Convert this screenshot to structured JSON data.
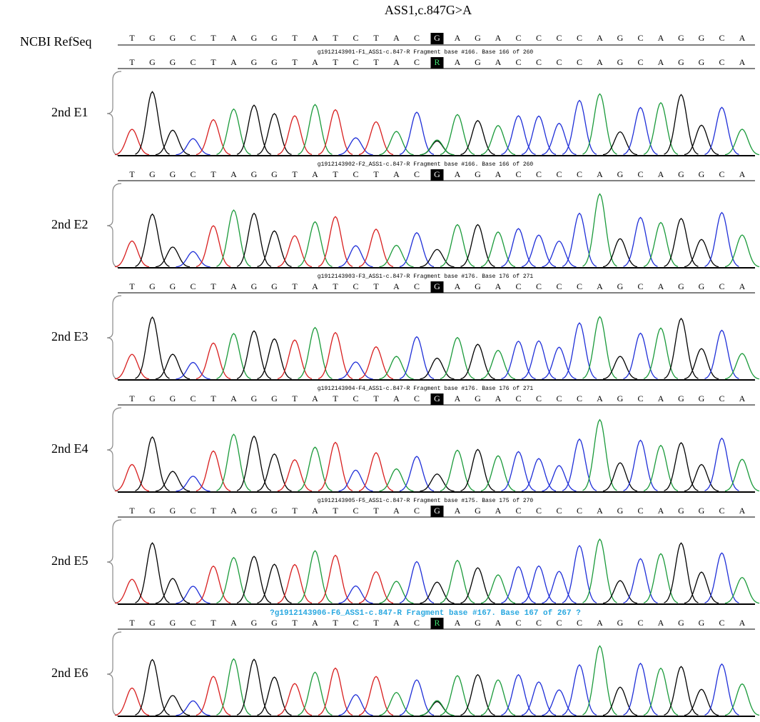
{
  "title": "ASS1,c.847G>A",
  "reference": {
    "label": "NCBI RefSeq",
    "bases": [
      "T",
      "G",
      "G",
      "C",
      "T",
      "A",
      "G",
      "G",
      "T",
      "A",
      "T",
      "C",
      "T",
      "A",
      "C",
      "G",
      "A",
      "G",
      "A",
      "C",
      "C",
      "C",
      "C",
      "A",
      "G",
      "C",
      "A",
      "G",
      "G",
      "C",
      "A"
    ]
  },
  "panels": [
    {
      "label": "2nd E1",
      "header": "g1912143901-F1_ASS1-c.847-R Fragment base #166. Base 166 of 260",
      "bases": [
        "T",
        "G",
        "G",
        "C",
        "T",
        "A",
        "G",
        "G",
        "T",
        "A",
        "T",
        "C",
        "T",
        "A",
        "C",
        "R",
        "A",
        "G",
        "A",
        "C",
        "C",
        "C",
        "C",
        "A",
        "G",
        "C",
        "A",
        "G",
        "G",
        "C",
        "A"
      ]
    },
    {
      "label": "2nd E2",
      "header": "g1912143902-F2_ASS1-c.847-R Fragment base #166. Base 166 of 260",
      "bases": [
        "T",
        "G",
        "G",
        "C",
        "T",
        "A",
        "G",
        "G",
        "T",
        "A",
        "T",
        "C",
        "T",
        "A",
        "C",
        "G",
        "A",
        "G",
        "A",
        "C",
        "C",
        "C",
        "C",
        "A",
        "G",
        "C",
        "A",
        "G",
        "G",
        "C",
        "A"
      ]
    },
    {
      "label": "2nd E3",
      "header": "g1912143903-F3_ASS1-c.847-R Fragment base #176. Base 176 of 271",
      "bases": [
        "T",
        "G",
        "G",
        "C",
        "T",
        "A",
        "G",
        "G",
        "T",
        "A",
        "T",
        "C",
        "T",
        "A",
        "C",
        "G",
        "A",
        "G",
        "A",
        "C",
        "C",
        "C",
        "C",
        "A",
        "G",
        "C",
        "A",
        "G",
        "G",
        "C",
        "A"
      ]
    },
    {
      "label": "2nd E4",
      "header": "g1912143904-F4_ASS1-c.847-R Fragment base #176. Base 176 of 271",
      "bases": [
        "T",
        "G",
        "G",
        "C",
        "T",
        "A",
        "G",
        "G",
        "T",
        "A",
        "T",
        "C",
        "T",
        "A",
        "C",
        "G",
        "A",
        "G",
        "A",
        "C",
        "C",
        "C",
        "C",
        "A",
        "G",
        "C",
        "A",
        "G",
        "G",
        "C",
        "A"
      ]
    },
    {
      "label": "2nd E5",
      "header": "g1912143905-F5_ASS1-c.847-R Fragment base #175. Base 175 of 270",
      "bases": [
        "T",
        "G",
        "G",
        "C",
        "T",
        "A",
        "G",
        "G",
        "T",
        "A",
        "T",
        "C",
        "T",
        "A",
        "C",
        "G",
        "A",
        "G",
        "A",
        "C",
        "C",
        "C",
        "C",
        "A",
        "G",
        "C",
        "A",
        "G",
        "G",
        "C",
        "A"
      ]
    },
    {
      "label": "2nd E6",
      "header": "?g1912143906-F6_ASS1-c.847-R Fragment base #167. Base 167 of 267 ?",
      "bases": [
        "T",
        "G",
        "G",
        "C",
        "T",
        "A",
        "G",
        "G",
        "T",
        "A",
        "T",
        "C",
        "T",
        "A",
        "C",
        "R",
        "A",
        "G",
        "A",
        "C",
        "C",
        "C",
        "C",
        "A",
        "G",
        "C",
        "A",
        "G",
        "G",
        "C",
        "A"
      ]
    }
  ]
}
